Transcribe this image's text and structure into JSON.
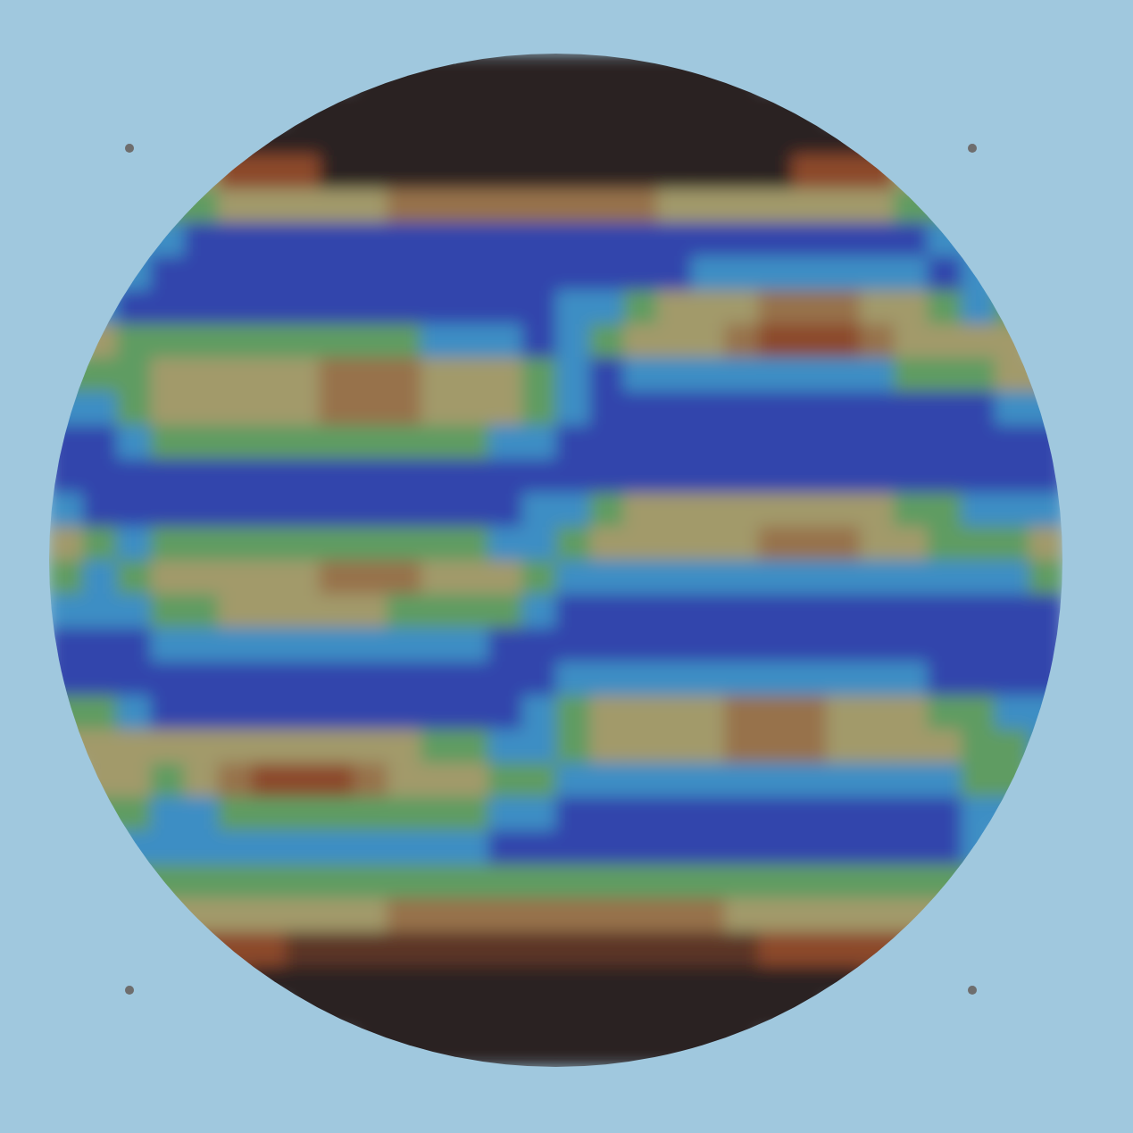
{
  "chart_data": {
    "type": "heatmap",
    "zlim": [
      0,
      5
    ],
    "cells": [
      [
        null,
        null,
        null,
        null,
        null,
        null,
        null,
        null,
        null,
        5,
        5,
        5,
        5,
        5,
        5,
        5,
        5,
        5,
        5,
        5,
        5,
        null,
        null,
        null,
        null,
        null,
        null,
        null,
        null,
        null
      ],
      [
        null,
        null,
        null,
        null,
        null,
        null,
        null,
        5,
        5,
        5,
        5,
        5,
        5,
        5,
        5,
        5,
        5,
        5,
        5,
        5,
        5,
        5,
        5,
        null,
        null,
        null,
        null,
        null,
        null,
        null
      ],
      [
        null,
        null,
        null,
        null,
        null,
        5,
        5,
        5,
        5,
        5,
        5,
        5,
        5,
        5,
        5,
        5,
        5,
        5,
        5,
        5,
        5,
        5,
        5,
        5,
        5,
        null,
        null,
        null,
        null,
        null
      ],
      [
        null,
        null,
        null,
        null,
        3,
        4,
        4,
        4,
        5,
        5,
        5,
        5,
        5,
        5,
        5,
        5,
        5,
        5,
        5,
        5,
        5,
        5,
        4,
        4,
        4,
        3,
        null,
        null,
        null,
        null
      ],
      [
        null,
        null,
        null,
        2,
        2,
        3,
        3,
        3,
        3,
        3,
        3.5,
        3.5,
        3.5,
        3.5,
        3.5,
        3.5,
        3.5,
        3.5,
        3,
        3,
        3,
        3,
        3,
        3,
        3,
        2,
        2,
        null,
        null,
        null
      ],
      [
        null,
        null,
        1,
        1,
        0,
        0,
        0,
        0,
        0,
        0,
        0,
        0,
        0,
        0,
        0,
        0,
        0,
        0,
        0,
        0,
        0,
        0,
        0,
        0,
        0,
        0,
        1,
        1,
        null,
        null
      ],
      [
        null,
        null,
        1,
        0,
        0,
        0,
        0,
        0,
        0,
        0,
        0,
        0,
        0,
        0,
        0,
        0,
        0,
        0,
        0,
        1,
        1,
        1,
        1,
        1,
        1,
        1,
        0,
        1,
        null,
        null
      ],
      [
        null,
        1,
        0,
        0,
        0,
        0,
        0,
        0,
        0,
        0,
        0,
        0,
        0,
        0,
        0,
        1,
        1,
        2,
        3,
        3,
        3,
        3.5,
        3.5,
        3.5,
        3,
        3,
        2,
        1,
        2,
        null
      ],
      [
        null,
        3,
        2,
        2,
        2,
        2,
        2,
        2,
        2,
        2,
        2,
        1,
        1,
        1,
        0,
        1,
        2,
        3,
        3,
        3,
        3.5,
        4,
        4,
        4,
        3.5,
        3,
        3,
        3,
        3,
        null
      ],
      [
        2,
        2,
        2,
        3,
        3,
        3,
        3,
        3,
        3.5,
        3.5,
        3.5,
        3,
        3,
        3,
        2,
        1,
        0,
        1,
        1,
        1,
        1,
        1,
        1,
        1,
        1,
        2,
        2,
        2,
        3,
        3
      ],
      [
        1,
        1,
        2,
        3,
        3,
        3,
        3,
        3,
        3.5,
        3.5,
        3.5,
        3,
        3,
        3,
        2,
        1,
        0,
        0,
        0,
        0,
        0,
        0,
        0,
        0,
        0,
        0,
        0,
        0,
        1,
        1
      ],
      [
        0,
        0,
        1,
        2,
        2,
        2,
        2,
        2,
        2,
        2,
        2,
        2,
        2,
        1,
        1,
        0,
        0,
        0,
        0,
        0,
        0,
        0,
        0,
        0,
        0,
        0,
        0,
        0,
        0,
        0
      ],
      [
        0,
        0,
        0,
        0,
        0,
        0,
        0,
        0,
        0,
        0,
        0,
        0,
        0,
        0,
        0,
        0,
        0,
        0,
        0,
        0,
        0,
        0,
        0,
        0,
        0,
        0,
        0,
        0,
        0,
        0
      ],
      [
        1,
        0,
        0,
        0,
        0,
        0,
        0,
        0,
        0,
        0,
        0,
        0,
        0,
        0,
        1,
        1,
        2,
        3,
        3,
        3,
        3,
        3,
        3,
        3,
        3,
        2,
        2,
        1,
        1,
        1
      ],
      [
        3,
        2,
        1,
        2,
        2,
        2,
        2,
        2,
        2,
        2,
        2,
        2,
        2,
        1,
        1,
        2,
        3,
        3,
        3,
        3,
        3,
        3.5,
        3.5,
        3.5,
        3,
        3,
        2,
        2,
        2,
        3
      ],
      [
        2,
        1,
        2,
        3,
        3,
        3,
        3,
        3,
        3.5,
        3.5,
        3.5,
        3,
        3,
        3,
        2,
        1,
        1,
        1,
        1,
        1,
        1,
        1,
        1,
        1,
        1,
        1,
        1,
        1,
        1,
        2
      ],
      [
        1,
        1,
        1,
        2,
        2,
        3,
        3,
        3,
        3,
        3,
        2,
        2,
        2,
        2,
        1,
        0,
        0,
        0,
        0,
        0,
        0,
        0,
        0,
        0,
        0,
        0,
        0,
        0,
        0,
        0
      ],
      [
        0,
        0,
        0,
        1,
        1,
        1,
        1,
        1,
        1,
        1,
        1,
        1,
        1,
        0,
        0,
        0,
        0,
        0,
        0,
        0,
        0,
        0,
        0,
        0,
        0,
        0,
        0,
        0,
        0,
        0
      ],
      [
        0,
        0,
        0,
        0,
        0,
        0,
        0,
        0,
        0,
        0,
        0,
        0,
        0,
        0,
        0,
        1,
        1,
        1,
        1,
        1,
        1,
        1,
        1,
        1,
        1,
        1,
        0,
        0,
        0,
        0
      ],
      [
        2,
        2,
        1,
        0,
        0,
        0,
        0,
        0,
        0,
        0,
        0,
        0,
        0,
        0,
        1,
        2,
        3,
        3,
        3,
        3,
        3.5,
        3.5,
        3.5,
        3,
        3,
        3,
        2,
        2,
        1,
        1
      ],
      [
        3,
        3,
        3,
        3,
        3,
        3,
        3,
        3,
        3,
        3,
        3,
        2,
        2,
        1,
        1,
        2,
        3,
        3,
        3,
        3,
        3.5,
        3.5,
        3.5,
        3,
        3,
        3,
        3,
        2,
        2,
        1
      ],
      [
        null,
        3,
        3,
        2,
        3,
        3.5,
        4,
        4,
        4,
        3.5,
        3,
        3,
        3,
        2,
        2,
        1,
        1,
        1,
        1,
        1,
        1,
        1,
        1,
        1,
        1,
        1,
        1,
        2,
        2,
        null
      ],
      [
        null,
        2,
        2,
        1,
        1,
        2,
        2,
        2,
        2,
        2,
        2,
        2,
        2,
        1,
        1,
        0,
        0,
        0,
        0,
        0,
        0,
        0,
        0,
        0,
        0,
        0,
        0,
        1,
        1,
        null
      ],
      [
        null,
        null,
        1,
        1,
        1,
        1,
        1,
        1,
        1,
        1,
        1,
        1,
        1,
        0,
        0,
        0,
        0,
        0,
        0,
        0,
        0,
        0,
        0,
        0,
        0,
        0,
        0,
        1,
        null,
        null
      ],
      [
        null,
        null,
        2,
        2,
        2,
        2,
        2,
        2,
        2,
        2,
        2,
        2,
        2,
        2,
        2,
        2,
        2,
        2,
        2,
        2,
        2,
        2,
        2,
        2,
        2,
        2,
        2,
        2,
        null,
        null
      ],
      [
        null,
        null,
        null,
        3,
        3,
        3,
        3,
        3,
        3,
        3,
        3.5,
        3.5,
        3.5,
        3.5,
        3.5,
        3.5,
        3.5,
        3.5,
        3.5,
        3.5,
        3,
        3,
        3,
        3,
        3,
        3,
        3,
        null,
        null,
        null
      ],
      [
        null,
        null,
        null,
        null,
        4,
        4,
        4,
        4.5,
        4.5,
        4.5,
        4.5,
        4.5,
        4.5,
        4.5,
        4.5,
        4.5,
        4.5,
        4.5,
        4.5,
        4.5,
        4.5,
        4,
        4,
        4,
        4,
        4,
        null,
        null,
        null,
        null
      ],
      [
        null,
        null,
        null,
        null,
        null,
        4.5,
        5,
        5,
        5,
        5,
        5,
        5,
        5,
        5,
        5,
        5,
        5,
        5,
        5,
        5,
        5,
        5,
        5,
        5,
        4.5,
        null,
        null,
        null,
        null,
        null
      ],
      [
        null,
        null,
        null,
        null,
        null,
        null,
        null,
        5,
        5,
        5,
        5,
        5,
        5,
        5,
        5,
        5,
        5,
        5,
        5,
        5,
        5,
        5,
        5,
        null,
        null,
        null,
        null,
        null,
        null,
        null
      ],
      [
        null,
        null,
        null,
        null,
        null,
        null,
        null,
        null,
        null,
        5,
        5,
        5,
        5,
        5,
        5,
        5,
        5,
        5,
        5,
        5,
        5,
        null,
        null,
        null,
        null,
        null,
        null,
        null,
        null,
        null
      ]
    ]
  }
}
